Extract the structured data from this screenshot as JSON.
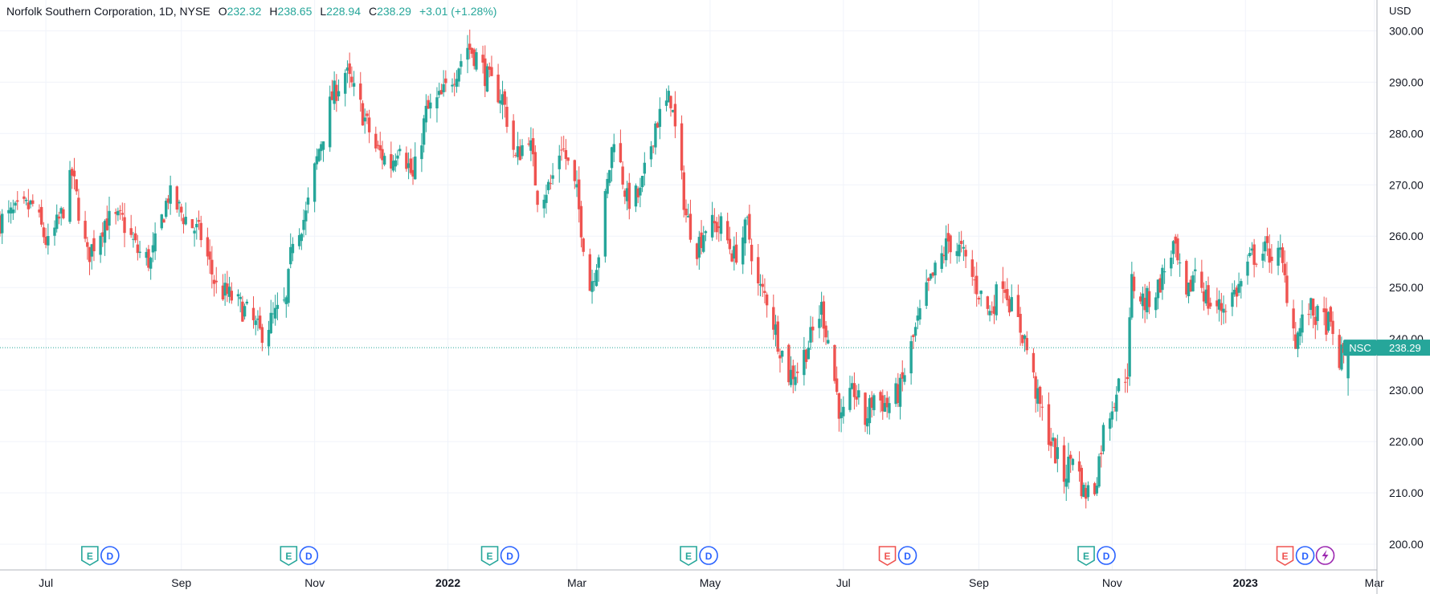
{
  "header": {
    "symbol_desc": "Norfolk Southern Corporation, 1D, NYSE",
    "open_label": "O",
    "open": "232.32",
    "high_label": "H",
    "high": "238.65",
    "low_label": "L",
    "low": "228.94",
    "close_label": "C",
    "close": "238.29",
    "change": "+3.01 (+1.28%)"
  },
  "currency": "USD",
  "last_price": {
    "ticker": "NSC",
    "value": "238.29",
    "numeric": 238.29
  },
  "colors": {
    "up": "#26a69a",
    "down": "#ef5350",
    "grid": "#f0f3fa",
    "axis": "#b2b5be",
    "event_blue": "#2962ff",
    "event_purple": "#9c27b0"
  },
  "events": [
    {
      "x_date": "2021-07-27",
      "items": [
        "E",
        "D"
      ],
      "e_color": "green"
    },
    {
      "x_date": "2021-10-26",
      "items": [
        "E",
        "D"
      ],
      "e_color": "green"
    },
    {
      "x_date": "2022-01-26",
      "items": [
        "E",
        "D"
      ],
      "e_color": "green"
    },
    {
      "x_date": "2022-04-27",
      "items": [
        "E",
        "D"
      ],
      "e_color": "green"
    },
    {
      "x_date": "2022-07-27",
      "items": [
        "E",
        "D"
      ],
      "e_color": "red"
    },
    {
      "x_date": "2022-10-26",
      "items": [
        "E",
        "D"
      ],
      "e_color": "green"
    },
    {
      "x_date": "2023-01-25",
      "items": [
        "E",
        "D",
        "S"
      ],
      "e_color": "red"
    }
  ],
  "chart_data": {
    "type": "candlestick",
    "x_axis": {
      "start": "2021-06-10",
      "end": "2023-02-28",
      "tick_labels": [
        "Jul",
        "Sep",
        "Nov",
        "2022",
        "Mar",
        "May",
        "Jul",
        "Sep",
        "Nov",
        "2023",
        "Mar"
      ],
      "tick_dates": [
        "2021-07-01",
        "2021-09-01",
        "2021-11-01",
        "2022-01-01",
        "2022-03-01",
        "2022-05-01",
        "2022-07-01",
        "2022-09-01",
        "2022-11-01",
        "2023-01-01",
        "2023-03-01"
      ]
    },
    "y_axis": {
      "min": 195,
      "max": 306,
      "tick_labels": [
        "200.00",
        "210.00",
        "220.00",
        "230.00",
        "240.00",
        "250.00",
        "260.00",
        "270.00",
        "280.00",
        "290.00",
        "300.00"
      ],
      "ticks": [
        200,
        210,
        220,
        230,
        240,
        250,
        260,
        270,
        280,
        290,
        300
      ]
    },
    "anchors": [
      [
        "2021-06-10",
        263
      ],
      [
        "2021-06-25",
        266
      ],
      [
        "2021-07-02",
        258
      ],
      [
        "2021-07-08",
        264
      ],
      [
        "2021-07-13",
        272
      ],
      [
        "2021-07-20",
        256
      ],
      [
        "2021-07-28",
        263
      ],
      [
        "2021-08-05",
        263
      ],
      [
        "2021-08-12",
        257
      ],
      [
        "2021-08-18",
        255
      ],
      [
        "2021-08-26",
        268
      ],
      [
        "2021-09-02",
        264
      ],
      [
        "2021-09-10",
        260
      ],
      [
        "2021-09-17",
        250
      ],
      [
        "2021-09-24",
        248
      ],
      [
        "2021-10-01",
        245
      ],
      [
        "2021-10-07",
        241
      ],
      [
        "2021-10-13",
        244
      ],
      [
        "2021-10-19",
        247
      ],
      [
        "2021-10-22",
        260
      ],
      [
        "2021-10-28",
        264
      ],
      [
        "2021-11-03",
        277
      ],
      [
        "2021-11-09",
        287
      ],
      [
        "2021-11-15",
        292
      ],
      [
        "2021-11-22",
        285
      ],
      [
        "2021-11-29",
        277
      ],
      [
        "2021-12-06",
        274
      ],
      [
        "2021-12-10",
        279
      ],
      [
        "2021-12-16",
        271
      ],
      [
        "2021-12-22",
        284
      ],
      [
        "2021-12-29",
        287
      ],
      [
        "2022-01-03",
        291
      ],
      [
        "2022-01-10",
        297
      ],
      [
        "2022-01-14",
        295
      ],
      [
        "2022-01-20",
        290
      ],
      [
        "2022-01-26",
        287
      ],
      [
        "2022-02-01",
        275
      ],
      [
        "2022-02-07",
        280
      ],
      [
        "2022-02-11",
        268
      ],
      [
        "2022-02-17",
        270
      ],
      [
        "2022-02-22",
        278
      ],
      [
        "2022-03-01",
        268
      ],
      [
        "2022-03-07",
        250
      ],
      [
        "2022-03-11",
        257
      ],
      [
        "2022-03-18",
        280
      ],
      [
        "2022-03-24",
        267
      ],
      [
        "2022-03-30",
        268
      ],
      [
        "2022-04-06",
        282
      ],
      [
        "2022-04-13",
        287
      ],
      [
        "2022-04-20",
        264
      ],
      [
        "2022-04-25",
        258
      ],
      [
        "2022-04-29",
        262
      ],
      [
        "2022-05-06",
        262
      ],
      [
        "2022-05-12",
        256
      ],
      [
        "2022-05-18",
        262
      ],
      [
        "2022-05-23",
        250
      ],
      [
        "2022-05-27",
        248
      ],
      [
        "2022-06-01",
        240
      ],
      [
        "2022-06-06",
        233
      ],
      [
        "2022-06-10",
        234
      ],
      [
        "2022-06-16",
        240
      ],
      [
        "2022-06-21",
        246
      ],
      [
        "2022-06-24",
        240
      ],
      [
        "2022-06-30",
        224
      ],
      [
        "2022-07-06",
        230
      ],
      [
        "2022-07-11",
        224
      ],
      [
        "2022-07-15",
        229
      ],
      [
        "2022-07-21",
        227
      ],
      [
        "2022-07-27",
        230
      ],
      [
        "2022-08-02",
        240
      ],
      [
        "2022-08-08",
        249
      ],
      [
        "2022-08-12",
        253
      ],
      [
        "2022-08-18",
        259
      ],
      [
        "2022-08-24",
        257
      ],
      [
        "2022-08-30",
        251
      ],
      [
        "2022-09-06",
        245
      ],
      [
        "2022-09-12",
        252
      ],
      [
        "2022-09-16",
        246
      ],
      [
        "2022-09-22",
        240
      ],
      [
        "2022-09-28",
        228
      ],
      [
        "2022-10-04",
        220
      ],
      [
        "2022-10-10",
        213
      ],
      [
        "2022-10-14",
        218
      ],
      [
        "2022-10-19",
        210
      ],
      [
        "2022-10-24",
        211
      ],
      [
        "2022-10-28",
        222
      ],
      [
        "2022-11-03",
        230
      ],
      [
        "2022-11-08",
        234
      ],
      [
        "2022-11-10",
        251
      ],
      [
        "2022-11-16",
        247
      ],
      [
        "2022-11-22",
        250
      ],
      [
        "2022-11-29",
        258
      ],
      [
        "2022-12-05",
        247
      ],
      [
        "2022-12-09",
        254
      ],
      [
        "2022-12-15",
        247
      ],
      [
        "2022-12-21",
        246
      ],
      [
        "2022-12-29",
        250
      ],
      [
        "2023-01-04",
        256
      ],
      [
        "2023-01-10",
        257
      ],
      [
        "2023-01-17",
        256
      ],
      [
        "2023-01-24",
        240
      ],
      [
        "2023-01-30",
        246
      ],
      [
        "2023-02-03",
        244
      ],
      [
        "2023-02-08",
        243
      ],
      [
        "2023-02-13",
        236
      ],
      [
        "2023-02-17",
        238.29
      ]
    ]
  }
}
